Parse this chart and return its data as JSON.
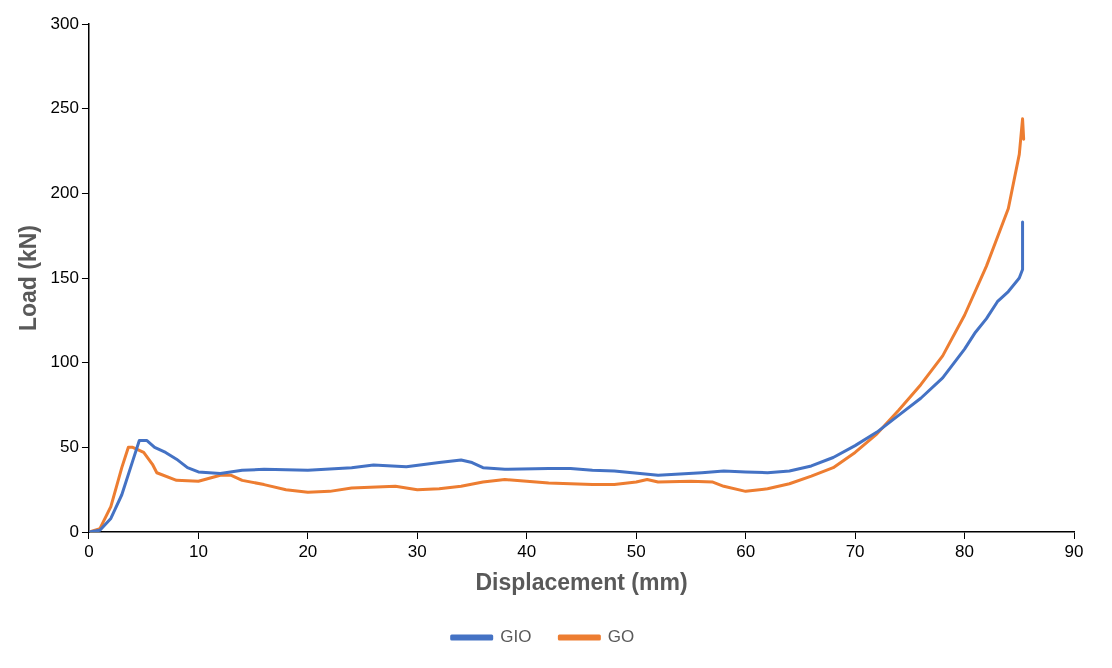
{
  "chart_data": {
    "type": "line",
    "xlabel": "Displacement (mm)",
    "ylabel": "Load (kN)",
    "xlim": [
      0,
      90
    ],
    "xticks": [
      0,
      10,
      20,
      30,
      40,
      50,
      60,
      70,
      80,
      90
    ],
    "ylim": [
      0,
      300
    ],
    "yticks": [
      0,
      50,
      100,
      150,
      200,
      250,
      300
    ],
    "grid": false,
    "legend": "bottom",
    "marker": "none",
    "line_style": "solid",
    "series": [
      {
        "name": "GIO",
        "color": "#4472c4",
        "x": [
          0,
          1,
          2,
          3,
          4,
          4.6,
          5.3,
          6,
          7,
          8,
          9,
          10,
          12,
          14,
          16,
          20,
          24,
          26,
          29,
          32,
          34,
          35,
          36,
          38,
          42,
          44,
          46,
          48,
          52,
          56,
          58,
          60,
          62,
          64,
          66,
          68,
          70,
          72,
          74,
          76,
          78,
          80,
          81,
          82,
          83,
          84,
          85,
          85.3,
          85.3
        ],
        "values": [
          0,
          1,
          8,
          22,
          42,
          54,
          54,
          50,
          47,
          43,
          38,
          35.5,
          34.5,
          36.5,
          37,
          36.5,
          38,
          39.5,
          38.5,
          41,
          42.5,
          41,
          38,
          37,
          37.5,
          37.5,
          36.5,
          36,
          33.5,
          35,
          36,
          35.5,
          35,
          36,
          39,
          44,
          51,
          59,
          69,
          79,
          91,
          108,
          118,
          126,
          136,
          142,
          150,
          155,
          183
        ]
      },
      {
        "name": "GO",
        "color": "#ed7d31",
        "x": [
          0,
          1,
          2,
          3,
          3.6,
          4,
          5,
          5.8,
          6.2,
          8,
          10,
          12,
          13,
          14,
          16,
          18,
          20,
          22,
          24,
          28,
          30,
          32,
          34,
          36,
          38,
          40,
          42,
          44,
          46,
          48,
          50,
          51,
          52,
          55,
          57,
          58,
          60,
          62,
          64,
          66,
          68,
          70,
          72,
          74,
          76,
          78,
          80,
          82,
          84,
          85,
          85.3,
          85.4
        ],
        "values": [
          0,
          2,
          15,
          38,
          50,
          50,
          47,
          40,
          35,
          30.5,
          30,
          33.5,
          33.5,
          30.5,
          28,
          25,
          23.5,
          24,
          26,
          27,
          25,
          25.5,
          27,
          29.5,
          31,
          30,
          29,
          28.5,
          28,
          28,
          29.5,
          31,
          29.5,
          30,
          29.5,
          27,
          24,
          25.5,
          28.5,
          33,
          38,
          47,
          58,
          72,
          87,
          104,
          128,
          157,
          191,
          223,
          244,
          232
        ]
      }
    ]
  }
}
